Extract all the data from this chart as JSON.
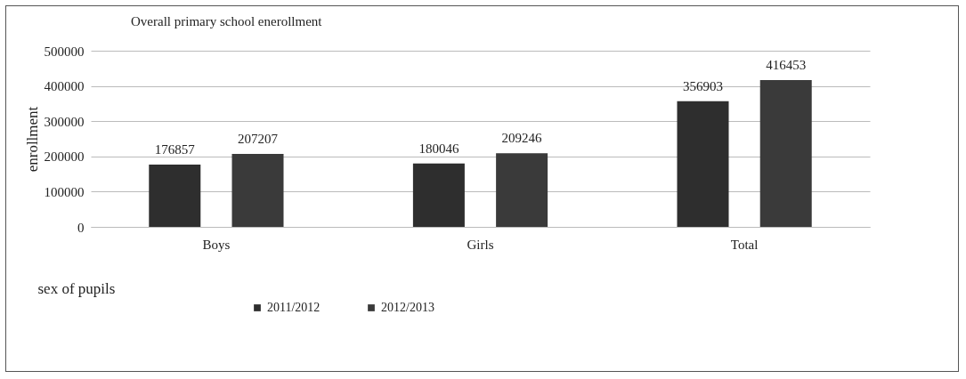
{
  "chart_data": {
    "type": "bar",
    "title": "Overall primary school enerollment",
    "xlabel": "sex of pupils",
    "ylabel": "enrollment",
    "categories": [
      "Boys",
      "Girls",
      "Total"
    ],
    "series": [
      {
        "name": "2011/2012",
        "color": "#2e2e2e",
        "values": [
          176857,
          180046,
          356903
        ]
      },
      {
        "name": "2012/2013",
        "color": "#3a3a3a",
        "values": [
          207207,
          209246,
          416453
        ]
      }
    ],
    "ylim": [
      0,
      500000
    ],
    "yticks": [
      0,
      100000,
      200000,
      300000,
      400000,
      500000
    ],
    "grid": "y",
    "legend": "bottom",
    "data_labels": true
  }
}
